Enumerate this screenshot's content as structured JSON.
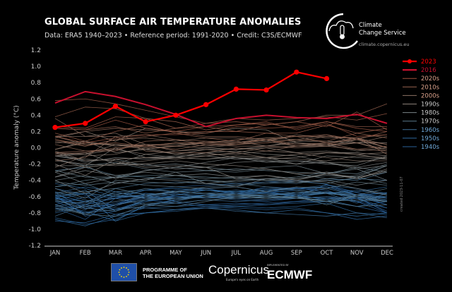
{
  "header": {
    "title": "GLOBAL SURFACE AIR TEMPERATURE ANOMALIES",
    "subtitle": "Data: ERA5 1940–2023 • Reference period: 1991-2020 • Credit: C3S/ECMWF"
  },
  "logo": {
    "c3s_line1": "Climate",
    "c3s_line2": "Change Service",
    "c3s_url": "climate.copernicus.eu"
  },
  "created_note": "created 2023-11-07",
  "footer": {
    "eu_line1": "PROGRAMME OF",
    "eu_line2": "THE EUROPEAN UNION",
    "copernicus": "Copernicus",
    "copernicus_tagline": "Europe's eyes on Earth",
    "implemented_by": "IMPLEMENTED BY",
    "ecmwf": "ECMWF"
  },
  "chart_data": {
    "type": "line",
    "ylabel": "Temperature anomaly (°C)",
    "ylim": [
      -1.2,
      1.2
    ],
    "yticks": [
      "1.2",
      "1.0",
      "0.8",
      "0.6",
      "0.4",
      "0.2",
      "0.0",
      "-0.2",
      "-0.4",
      "-0.6",
      "-0.8",
      "-1.0",
      "-1.2"
    ],
    "categories": [
      "JAN",
      "FEB",
      "MAR",
      "APR",
      "MAY",
      "JUN",
      "JUL",
      "AUG",
      "SEP",
      "OCT",
      "NOV",
      "DEC"
    ],
    "grid": false,
    "legend_placement": "right",
    "highlight": [
      {
        "name": "2023",
        "color": "#ff0000",
        "markers": true,
        "values": [
          0.25,
          0.3,
          0.51,
          0.32,
          0.4,
          0.53,
          0.72,
          0.71,
          0.93,
          0.85
        ]
      },
      {
        "name": "2016",
        "color": "#c8102e",
        "markers": false,
        "values": [
          0.55,
          0.69,
          0.63,
          0.53,
          0.41,
          0.26,
          0.36,
          0.4,
          0.37,
          0.36,
          0.41,
          0.3
        ]
      }
    ],
    "legend_decades": [
      {
        "name": "2020s",
        "color": "#a0503c"
      },
      {
        "name": "2010s",
        "color": "#9a6450"
      },
      {
        "name": "2000s",
        "color": "#8c7264"
      },
      {
        "name": "1990s",
        "color": "#8a8078"
      },
      {
        "name": "1980s",
        "color": "#7a8488"
      },
      {
        "name": "1970s",
        "color": "#5a7a8c"
      },
      {
        "name": "1960s",
        "color": "#3f6f98"
      },
      {
        "name": "1950s",
        "color": "#2f6aa0"
      },
      {
        "name": "1940s",
        "color": "#2a5f98"
      }
    ],
    "years": {
      "1940": [
        -0.74,
        -0.88,
        -0.62,
        -0.58,
        -0.55,
        -0.5,
        -0.56,
        -0.52,
        -0.49,
        -0.55,
        -0.6,
        -0.8
      ],
      "1941": [
        -0.62,
        -0.72,
        -0.7,
        -0.6,
        -0.52,
        -0.5,
        -0.48,
        -0.54,
        -0.6,
        -0.45,
        -0.58,
        -0.55
      ],
      "1942": [
        -0.55,
        -0.75,
        -0.68,
        -0.6,
        -0.62,
        -0.58,
        -0.6,
        -0.62,
        -0.58,
        -0.56,
        -0.6,
        -0.7
      ],
      "1943": [
        -0.7,
        -0.6,
        -0.72,
        -0.58,
        -0.6,
        -0.62,
        -0.58,
        -0.55,
        -0.52,
        -0.48,
        -0.55,
        -0.62
      ],
      "1944": [
        -0.5,
        -0.58,
        -0.62,
        -0.52,
        -0.48,
        -0.46,
        -0.44,
        -0.42,
        -0.4,
        -0.45,
        -0.55,
        -0.65
      ],
      "1945": [
        -0.6,
        -0.82,
        -0.7,
        -0.56,
        -0.58,
        -0.52,
        -0.56,
        -0.48,
        -0.5,
        -0.52,
        -0.66,
        -0.8
      ],
      "1946": [
        -0.62,
        -0.7,
        -0.62,
        -0.58,
        -0.66,
        -0.7,
        -0.68,
        -0.7,
        -0.66,
        -0.62,
        -0.62,
        -0.78
      ],
      "1947": [
        -0.66,
        -0.8,
        -0.7,
        -0.62,
        -0.6,
        -0.58,
        -0.62,
        -0.64,
        -0.6,
        -0.56,
        -0.58,
        -0.7
      ],
      "1948": [
        -0.58,
        -0.84,
        -0.78,
        -0.66,
        -0.62,
        -0.6,
        -0.64,
        -0.66,
        -0.62,
        -0.6,
        -0.66,
        -0.74
      ],
      "1949": [
        -0.72,
        -0.8,
        -0.7,
        -0.64,
        -0.68,
        -0.72,
        -0.7,
        -0.68,
        -0.66,
        -0.66,
        -0.72,
        -0.8
      ],
      "1950": [
        -0.9,
        -0.92,
        -0.82,
        -0.8,
        -0.76,
        -0.72,
        -0.74,
        -0.76,
        -0.74,
        -0.8,
        -0.88,
        -0.84
      ],
      "1951": [
        -0.86,
        -0.94,
        -0.88,
        -0.72,
        -0.64,
        -0.58,
        -0.54,
        -0.52,
        -0.5,
        -0.48,
        -0.58,
        -0.56
      ],
      "1952": [
        -0.62,
        -0.66,
        -0.76,
        -0.64,
        -0.6,
        -0.58,
        -0.56,
        -0.54,
        -0.58,
        -0.64,
        -0.72,
        -0.66
      ],
      "1953": [
        -0.6,
        -0.56,
        -0.6,
        -0.52,
        -0.5,
        -0.52,
        -0.54,
        -0.52,
        -0.56,
        -0.54,
        -0.62,
        -0.6
      ],
      "1954": [
        -0.8,
        -0.72,
        -0.82,
        -0.74,
        -0.72,
        -0.7,
        -0.72,
        -0.7,
        -0.68,
        -0.66,
        -0.62,
        -0.74
      ],
      "1955": [
        -0.7,
        -0.78,
        -0.9,
        -0.8,
        -0.76,
        -0.74,
        -0.72,
        -0.74,
        -0.72,
        -0.68,
        -0.8,
        -0.82
      ],
      "1956": [
        -0.88,
        -0.96,
        -0.84,
        -0.8,
        -0.78,
        -0.74,
        -0.76,
        -0.8,
        -0.76,
        -0.8,
        -0.84,
        -0.8
      ],
      "1957": [
        -0.76,
        -0.7,
        -0.76,
        -0.66,
        -0.58,
        -0.52,
        -0.54,
        -0.5,
        -0.52,
        -0.56,
        -0.54,
        -0.48
      ],
      "1958": [
        -0.44,
        -0.5,
        -0.6,
        -0.58,
        -0.54,
        -0.56,
        -0.52,
        -0.56,
        -0.58,
        -0.56,
        -0.52,
        -0.58
      ],
      "1959": [
        -0.58,
        -0.66,
        -0.56,
        -0.56,
        -0.58,
        -0.56,
        -0.58,
        -0.56,
        -0.6,
        -0.62,
        -0.66,
        -0.6
      ],
      "1960": [
        -0.64,
        -0.56,
        -0.9,
        -0.7,
        -0.64,
        -0.58,
        -0.6,
        -0.58,
        -0.56,
        -0.56,
        -0.68,
        -0.56
      ],
      "1961": [
        -0.56,
        -0.48,
        -0.54,
        -0.52,
        -0.54,
        -0.52,
        -0.56,
        -0.56,
        -0.58,
        -0.56,
        -0.6,
        -0.66
      ],
      "1962": [
        -0.58,
        -0.56,
        -0.6,
        -0.6,
        -0.62,
        -0.58,
        -0.6,
        -0.62,
        -0.58,
        -0.56,
        -0.58,
        -0.6
      ],
      "1963": [
        -0.62,
        -0.52,
        -0.78,
        -0.64,
        -0.62,
        -0.6,
        -0.56,
        -0.54,
        -0.5,
        -0.46,
        -0.5,
        -0.56
      ],
      "1964": [
        -0.54,
        -0.64,
        -0.74,
        -0.74,
        -0.76,
        -0.74,
        -0.78,
        -0.8,
        -0.82,
        -0.84,
        -0.8,
        -0.86
      ],
      "1965": [
        -0.74,
        -0.8,
        -0.76,
        -0.72,
        -0.68,
        -0.64,
        -0.66,
        -0.64,
        -0.62,
        -0.6,
        -0.62,
        -0.66
      ],
      "1966": [
        -0.72,
        -0.66,
        -0.62,
        -0.7,
        -0.66,
        -0.58,
        -0.56,
        -0.6,
        -0.6,
        -0.66,
        -0.58,
        -0.66
      ],
      "1967": [
        -0.64,
        -0.76,
        -0.58,
        -0.62,
        -0.56,
        -0.62,
        -0.6,
        -0.58,
        -0.56,
        -0.5,
        -0.58,
        -0.62
      ],
      "1968": [
        -0.84,
        -0.7,
        -0.54,
        -0.62,
        -0.64,
        -0.6,
        -0.62,
        -0.6,
        -0.62,
        -0.54,
        -0.58,
        -0.64
      ],
      "1969": [
        -0.66,
        -0.68,
        -0.5,
        -0.44,
        -0.42,
        -0.44,
        -0.46,
        -0.44,
        -0.42,
        -0.4,
        -0.38,
        -0.4
      ],
      "1970": [
        -0.48,
        -0.44,
        -0.58,
        -0.5,
        -0.54,
        -0.56,
        -0.58,
        -0.6,
        -0.54,
        -0.56,
        -0.6,
        -0.66
      ],
      "1971": [
        -0.64,
        -0.74,
        -0.78,
        -0.68,
        -0.68,
        -0.64,
        -0.62,
        -0.6,
        -0.62,
        -0.64,
        -0.6,
        -0.66
      ],
      "1972": [
        -0.78,
        -0.72,
        -0.66,
        -0.6,
        -0.54,
        -0.48,
        -0.46,
        -0.42,
        -0.44,
        -0.38,
        -0.4,
        -0.3
      ],
      "1973": [
        -0.28,
        -0.24,
        -0.34,
        -0.36,
        -0.38,
        -0.4,
        -0.44,
        -0.48,
        -0.52,
        -0.56,
        -0.6,
        -0.66
      ],
      "1974": [
        -0.74,
        -0.82,
        -0.7,
        -0.64,
        -0.62,
        -0.6,
        -0.58,
        -0.58,
        -0.62,
        -0.66,
        -0.64,
        -0.66
      ],
      "1975": [
        -0.56,
        -0.54,
        -0.5,
        -0.58,
        -0.54,
        -0.56,
        -0.58,
        -0.62,
        -0.6,
        -0.66,
        -0.72,
        -0.7
      ],
      "1976": [
        -0.7,
        -0.82,
        -0.84,
        -0.7,
        -0.72,
        -0.66,
        -0.6,
        -0.62,
        -0.6,
        -0.7,
        -0.58,
        -0.5
      ],
      "1977": [
        -0.48,
        -0.4,
        -0.36,
        -0.34,
        -0.34,
        -0.36,
        -0.38,
        -0.4,
        -0.42,
        -0.44,
        -0.36,
        -0.44
      ],
      "1978": [
        -0.42,
        -0.46,
        -0.42,
        -0.46,
        -0.48,
        -0.5,
        -0.48,
        -0.54,
        -0.48,
        -0.5,
        -0.42,
        -0.46
      ],
      "1979": [
        -0.5,
        -0.62,
        -0.4,
        -0.42,
        -0.44,
        -0.4,
        -0.42,
        -0.38,
        -0.36,
        -0.3,
        -0.32,
        -0.2
      ],
      "1980": [
        -0.28,
        -0.36,
        -0.36,
        -0.28,
        -0.24,
        -0.28,
        -0.26,
        -0.28,
        -0.3,
        -0.32,
        -0.24,
        -0.3
      ],
      "1981": [
        -0.14,
        -0.22,
        -0.18,
        -0.26,
        -0.3,
        -0.28,
        -0.3,
        -0.26,
        -0.32,
        -0.38,
        -0.34,
        -0.22
      ],
      "1982": [
        -0.4,
        -0.34,
        -0.44,
        -0.38,
        -0.34,
        -0.38,
        -0.36,
        -0.4,
        -0.38,
        -0.34,
        -0.36,
        -0.22
      ],
      "1983": [
        -0.1,
        -0.16,
        -0.14,
        -0.22,
        -0.2,
        -0.24,
        -0.28,
        -0.24,
        -0.22,
        -0.32,
        -0.26,
        -0.4
      ],
      "1984": [
        -0.3,
        -0.44,
        -0.36,
        -0.4,
        -0.3,
        -0.44,
        -0.4,
        -0.38,
        -0.4,
        -0.42,
        -0.5,
        -0.58
      ],
      "1985": [
        -0.4,
        -0.56,
        -0.44,
        -0.38,
        -0.4,
        -0.44,
        -0.48,
        -0.38,
        -0.42,
        -0.4,
        -0.46,
        -0.4
      ],
      "1986": [
        -0.36,
        -0.28,
        -0.34,
        -0.3,
        -0.34,
        -0.32,
        -0.36,
        -0.34,
        -0.38,
        -0.32,
        -0.36,
        -0.3
      ],
      "1987": [
        -0.3,
        -0.22,
        -0.38,
        -0.28,
        -0.24,
        -0.18,
        -0.12,
        -0.18,
        -0.16,
        -0.2,
        -0.22,
        -0.1
      ],
      "1988": [
        -0.06,
        -0.18,
        -0.12,
        -0.14,
        -0.12,
        -0.14,
        -0.12,
        -0.16,
        -0.16,
        -0.18,
        -0.26,
        -0.22
      ],
      "1989": [
        -0.36,
        -0.24,
        -0.2,
        -0.2,
        -0.26,
        -0.24,
        -0.18,
        -0.16,
        -0.2,
        -0.18,
        -0.24,
        -0.18
      ],
      "1990": [
        -0.22,
        -0.22,
        0.0,
        -0.12,
        -0.1,
        -0.1,
        -0.14,
        -0.12,
        -0.2,
        -0.1,
        -0.12,
        -0.14
      ],
      "1991": [
        -0.1,
        -0.06,
        -0.2,
        -0.08,
        -0.12,
        -0.06,
        -0.04,
        -0.08,
        -0.1,
        -0.18,
        -0.18,
        -0.12
      ],
      "1992": [
        -0.1,
        -0.14,
        -0.16,
        -0.24,
        -0.22,
        -0.24,
        -0.38,
        -0.34,
        -0.4,
        -0.32,
        -0.38,
        -0.28
      ],
      "1993": [
        -0.16,
        -0.2,
        -0.22,
        -0.2,
        -0.16,
        -0.2,
        -0.22,
        -0.26,
        -0.32,
        -0.3,
        -0.38,
        -0.26
      ],
      "1994": [
        -0.2,
        -0.34,
        -0.14,
        -0.12,
        -0.12,
        -0.06,
        -0.12,
        -0.14,
        -0.12,
        -0.06,
        -0.06,
        -0.1
      ],
      "1995": [
        -0.02,
        0.08,
        -0.06,
        -0.02,
        -0.08,
        -0.02,
        -0.02,
        0.0,
        -0.06,
        -0.04,
        -0.08,
        -0.14
      ],
      "1996": [
        -0.14,
        -0.24,
        -0.2,
        -0.16,
        -0.12,
        -0.14,
        -0.1,
        -0.12,
        -0.14,
        -0.16,
        -0.1,
        -0.12
      ],
      "1997": [
        -0.1,
        -0.08,
        -0.02,
        -0.08,
        -0.04,
        0.0,
        -0.02,
        0.02,
        0.08,
        0.08,
        0.06,
        0.06
      ],
      "1998": [
        0.12,
        0.2,
        0.08,
        0.24,
        0.2,
        0.18,
        0.24,
        0.22,
        0.06,
        0.04,
        -0.04,
        0.0
      ],
      "1999": [
        -0.04,
        -0.16,
        -0.14,
        -0.12,
        -0.14,
        -0.1,
        -0.06,
        -0.12,
        -0.08,
        -0.06,
        -0.08,
        -0.06
      ],
      "2000": [
        -0.24,
        -0.1,
        -0.08,
        0.0,
        -0.08,
        -0.08,
        -0.08,
        -0.04,
        -0.06,
        -0.12,
        -0.16,
        -0.16
      ],
      "2001": [
        -0.06,
        -0.08,
        0.04,
        -0.02,
        0.02,
        0.0,
        0.04,
        0.08,
        0.02,
        0.02,
        0.1,
        0.0
      ],
      "2002": [
        0.14,
        0.14,
        0.18,
        0.04,
        0.04,
        0.06,
        0.08,
        0.02,
        0.06,
        0.02,
        0.06,
        -0.02
      ],
      "2003": [
        0.14,
        0.04,
        0.04,
        0.02,
        0.06,
        0.02,
        0.06,
        0.12,
        0.1,
        0.16,
        0.06,
        0.14
      ],
      "2004": [
        0.06,
        0.08,
        0.02,
        0.04,
        -0.04,
        -0.02,
        -0.06,
        0.0,
        0.02,
        0.06,
        0.12,
        0.0
      ],
      "2005": [
        0.08,
        0.02,
        0.1,
        0.12,
        0.08,
        0.12,
        0.12,
        0.08,
        0.16,
        0.12,
        0.12,
        0.04
      ],
      "2006": [
        -0.02,
        0.06,
        0.04,
        0.0,
        0.02,
        0.08,
        0.06,
        0.1,
        0.08,
        0.14,
        0.12,
        0.16
      ],
      "2007": [
        0.36,
        0.14,
        0.14,
        0.16,
        0.1,
        0.04,
        0.02,
        0.02,
        0.0,
        0.02,
        -0.02,
        -0.04
      ],
      "2008": [
        -0.16,
        -0.12,
        0.14,
        -0.04,
        -0.06,
        -0.06,
        0.0,
        -0.04,
        0.02,
        0.04,
        0.06,
        -0.04
      ],
      "2009": [
        0.04,
        -0.04,
        -0.02,
        0.04,
        0.02,
        0.06,
        0.1,
        0.12,
        0.14,
        0.06,
        0.1,
        0.04
      ],
      "2010": [
        0.14,
        0.2,
        0.24,
        0.22,
        0.2,
        0.14,
        0.14,
        0.1,
        0.02,
        0.04,
        0.12,
        -0.08
      ],
      "2011": [
        -0.08,
        -0.06,
        0.0,
        0.02,
        -0.02,
        0.04,
        0.04,
        0.1,
        0.04,
        0.06,
        -0.02,
        0.02
      ],
      "2012": [
        -0.06,
        -0.04,
        -0.04,
        0.08,
        0.1,
        0.08,
        0.06,
        0.1,
        0.14,
        0.14,
        0.12,
        0.0
      ],
      "2013": [
        0.1,
        0.04,
        0.06,
        0.02,
        0.06,
        0.06,
        0.04,
        0.06,
        0.1,
        0.08,
        0.18,
        0.12
      ],
      "2014": [
        0.1,
        0.02,
        0.1,
        0.14,
        0.18,
        0.12,
        0.08,
        0.18,
        0.14,
        0.16,
        0.1,
        0.2
      ],
      "2015": [
        0.24,
        0.22,
        0.26,
        0.18,
        0.24,
        0.26,
        0.2,
        0.28,
        0.32,
        0.4,
        0.4,
        0.54
      ],
      "2017": [
        0.38,
        0.5,
        0.48,
        0.36,
        0.32,
        0.22,
        0.28,
        0.3,
        0.24,
        0.32,
        0.26,
        0.26
      ],
      "2018": [
        0.18,
        0.08,
        0.2,
        0.28,
        0.18,
        0.2,
        0.2,
        0.18,
        0.18,
        0.28,
        0.18,
        0.24
      ],
      "2019": [
        0.26,
        0.24,
        0.38,
        0.36,
        0.24,
        0.3,
        0.36,
        0.34,
        0.36,
        0.38,
        0.34,
        0.42
      ],
      "2020": [
        0.58,
        0.6,
        0.54,
        0.46,
        0.38,
        0.3,
        0.32,
        0.28,
        0.32,
        0.26,
        0.44,
        0.22
      ],
      "2021": [
        0.14,
        0.06,
        0.12,
        0.16,
        0.16,
        0.18,
        0.26,
        0.24,
        0.26,
        0.32,
        0.24,
        0.2
      ],
      "2022": [
        0.24,
        0.22,
        0.34,
        0.24,
        0.2,
        0.26,
        0.28,
        0.32,
        0.22,
        0.3,
        0.14,
        0.16
      ]
    }
  }
}
